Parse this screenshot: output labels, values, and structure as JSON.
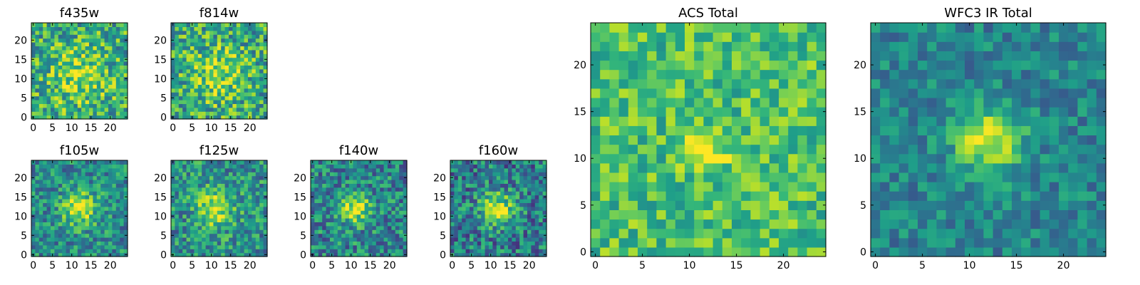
{
  "chart_data": [
    {
      "type": "heatmap",
      "id": "f435w",
      "title": "f435w",
      "grid": [
        25,
        25
      ],
      "xlim": [
        -0.5,
        24.5
      ],
      "ylim": [
        -0.5,
        24.5
      ],
      "xticks": [
        0,
        5,
        10,
        15,
        20
      ],
      "yticks": [
        0,
        5,
        10,
        15,
        20
      ],
      "xtick_labels": [
        "0",
        "5",
        "10",
        "15",
        "20"
      ],
      "ytick_labels": [
        "0",
        "5",
        "10",
        "15",
        "20"
      ],
      "colormap": "viridis",
      "source_center": [
        12,
        11
      ],
      "source_peak": 0.25,
      "source_sigma": 5.0,
      "base_level": 0.62,
      "noise_level": 0.3,
      "seed": 11
    },
    {
      "type": "heatmap",
      "id": "f814w",
      "title": "f814w",
      "grid": [
        25,
        25
      ],
      "xlim": [
        -0.5,
        24.5
      ],
      "ylim": [
        -0.5,
        24.5
      ],
      "xticks": [
        0,
        5,
        10,
        15,
        20
      ],
      "yticks": [
        0,
        5,
        10,
        15,
        20
      ],
      "xtick_labels": [
        "0",
        "5",
        "10",
        "15",
        "20"
      ],
      "ytick_labels": [
        "0",
        "5",
        "10",
        "15",
        "20"
      ],
      "colormap": "viridis",
      "source_center": [
        12,
        11
      ],
      "source_peak": 0.25,
      "source_sigma": 5.0,
      "base_level": 0.6,
      "noise_level": 0.3,
      "seed": 23
    },
    {
      "type": "heatmap",
      "id": "f105w",
      "title": "f105w",
      "grid": [
        25,
        25
      ],
      "xlim": [
        -0.5,
        24.5
      ],
      "ylim": [
        -0.5,
        24.5
      ],
      "xticks": [
        0,
        5,
        10,
        15,
        20
      ],
      "yticks": [
        0,
        5,
        10,
        15,
        20
      ],
      "xtick_labels": [
        "0",
        "5",
        "10",
        "15",
        "20"
      ],
      "ytick_labels": [
        "0",
        "5",
        "10",
        "15",
        "20"
      ],
      "colormap": "viridis",
      "source_center": [
        12,
        12
      ],
      "source_peak": 0.45,
      "source_sigma": 3.2,
      "base_level": 0.48,
      "noise_level": 0.24,
      "seed": 37
    },
    {
      "type": "heatmap",
      "id": "f125w",
      "title": "f125w",
      "grid": [
        25,
        25
      ],
      "xlim": [
        -0.5,
        24.5
      ],
      "ylim": [
        -0.5,
        24.5
      ],
      "xticks": [
        0,
        5,
        10,
        15,
        20
      ],
      "yticks": [
        0,
        5,
        10,
        15,
        20
      ],
      "xtick_labels": [
        "0",
        "5",
        "10",
        "15",
        "20"
      ],
      "ytick_labels": [
        "0",
        "5",
        "10",
        "15",
        "20"
      ],
      "colormap": "viridis",
      "source_center": [
        11,
        12
      ],
      "source_peak": 0.4,
      "source_sigma": 3.5,
      "base_level": 0.5,
      "noise_level": 0.26,
      "seed": 41
    },
    {
      "type": "heatmap",
      "id": "f140w",
      "title": "f140w",
      "grid": [
        25,
        25
      ],
      "xlim": [
        -0.5,
        24.5
      ],
      "ylim": [
        -0.5,
        24.5
      ],
      "xticks": [
        0,
        5,
        10,
        15,
        20
      ],
      "yticks": [
        0,
        5,
        10,
        15,
        20
      ],
      "xtick_labels": [
        "0",
        "5",
        "10",
        "15",
        "20"
      ],
      "ytick_labels": [
        "0",
        "5",
        "10",
        "15",
        "20"
      ],
      "colormap": "viridis",
      "source_center": [
        11,
        12
      ],
      "source_peak": 0.45,
      "source_sigma": 3.0,
      "base_level": 0.45,
      "noise_level": 0.27,
      "seed": 53
    },
    {
      "type": "heatmap",
      "id": "f160w",
      "title": "f160w",
      "grid": [
        25,
        25
      ],
      "xlim": [
        -0.5,
        24.5
      ],
      "ylim": [
        -0.5,
        24.5
      ],
      "xticks": [
        0,
        5,
        10,
        15,
        20
      ],
      "yticks": [
        0,
        5,
        10,
        15,
        20
      ],
      "xtick_labels": [
        "0",
        "5",
        "10",
        "15",
        "20"
      ],
      "ytick_labels": [
        "0",
        "5",
        "10",
        "15",
        "20"
      ],
      "colormap": "viridis",
      "source_center": [
        12,
        12
      ],
      "source_peak": 0.5,
      "source_sigma": 3.0,
      "base_level": 0.42,
      "noise_level": 0.28,
      "seed": 67
    },
    {
      "type": "heatmap",
      "id": "acs-total",
      "title": "ACS Total",
      "grid": [
        25,
        25
      ],
      "xlim": [
        -0.5,
        24.5
      ],
      "ylim": [
        -0.5,
        24.5
      ],
      "xticks": [
        0,
        5,
        10,
        15,
        20
      ],
      "yticks": [
        0,
        5,
        10,
        15,
        20
      ],
      "xtick_labels": [
        "0",
        "5",
        "10",
        "15",
        "20"
      ],
      "ytick_labels": [
        "0",
        "5",
        "10",
        "15",
        "20"
      ],
      "colormap": "viridis",
      "source_center": [
        12,
        11
      ],
      "source_peak": 0.3,
      "source_sigma": 1.6,
      "base_level": 0.7,
      "noise_level": 0.2,
      "seed": 79
    },
    {
      "type": "heatmap",
      "id": "wfc3-total",
      "title": "WFC3 IR Total",
      "grid": [
        25,
        25
      ],
      "xlim": [
        -0.5,
        24.5
      ],
      "ylim": [
        -0.5,
        24.5
      ],
      "xticks": [
        0,
        5,
        10,
        15,
        20
      ],
      "yticks": [
        0,
        5,
        10,
        15,
        20
      ],
      "xtick_labels": [
        "0",
        "5",
        "10",
        "15",
        "20"
      ],
      "ytick_labels": [
        "0",
        "5",
        "10",
        "15",
        "20"
      ],
      "colormap": "viridis",
      "source_center": [
        12,
        12
      ],
      "source_peak": 0.5,
      "source_sigma": 2.5,
      "base_level": 0.45,
      "noise_level": 0.17,
      "seed": 97
    }
  ]
}
